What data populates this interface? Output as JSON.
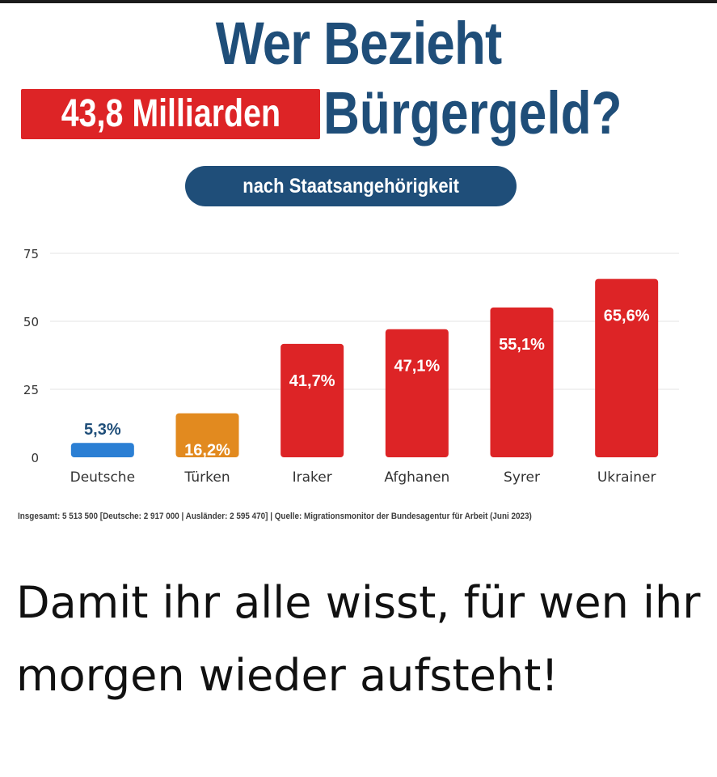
{
  "title": {
    "line1": "Wer Bezieht",
    "amount": "43,8 Milliarden",
    "line2": "Bürgergeld?"
  },
  "subtitle": "nach Staatsangehörigkeit",
  "colors": {
    "title_blue": "#1f4e79",
    "badge_red": "#dd2426",
    "bar_blue": "#2b7fd4",
    "bar_orange": "#e28a1f",
    "bar_red": "#dd2426"
  },
  "chart_data": {
    "type": "bar",
    "categories": [
      "Deutsche",
      "Türken",
      "Iraker",
      "Afghanen",
      "Syrer",
      "Ukrainer"
    ],
    "values": [
      5.3,
      16.2,
      41.7,
      47.1,
      55.1,
      65.6
    ],
    "value_labels": [
      "5,3%",
      "16,2%",
      "41,7%",
      "47,1%",
      "55,1%",
      "65,6%"
    ],
    "bar_colors": [
      "#2b7fd4",
      "#e28a1f",
      "#dd2426",
      "#dd2426",
      "#dd2426",
      "#dd2426"
    ],
    "yticks": [
      0,
      25,
      50,
      75
    ],
    "ylim": [
      0,
      75
    ],
    "grid": true,
    "legend": "none"
  },
  "footnote": "Insgesamt: 5 513 500 [Deutsche: 2 917 000 | Ausländer: 2 595 470] | Quelle: Migrationsmonitor der Bundesagentur für Arbeit (Juni 2023)",
  "caption": "Damit ihr alle wisst, für wen ihr morgen wieder aufsteht!"
}
